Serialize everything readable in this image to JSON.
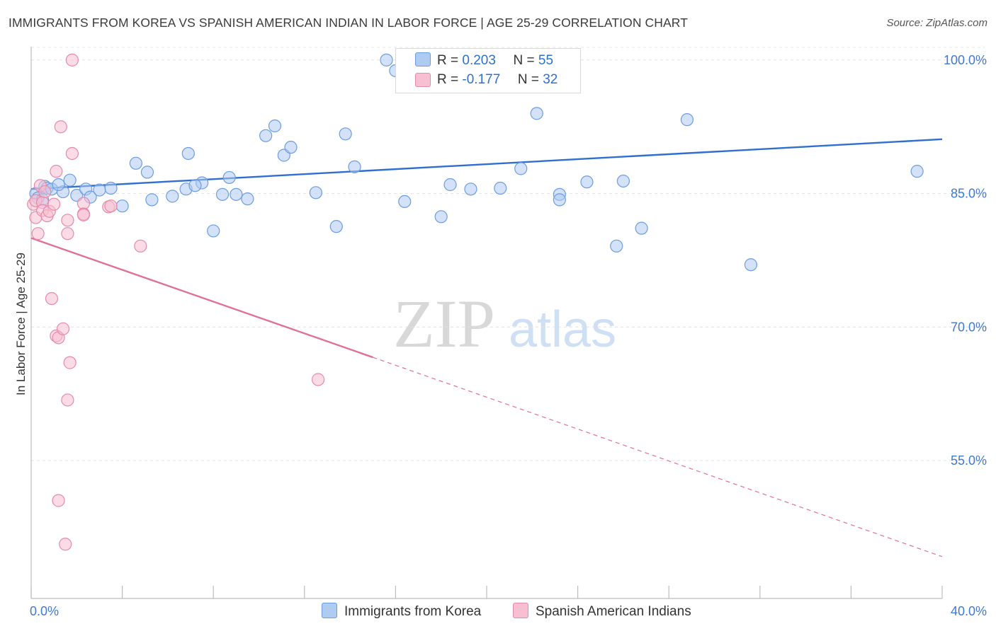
{
  "title": "IMMIGRANTS FROM KOREA VS SPANISH AMERICAN INDIAN IN LABOR FORCE | AGE 25-29 CORRELATION CHART",
  "source": "Source: ZipAtlas.com",
  "watermark": {
    "zip": "ZIP",
    "atlas": "atlas"
  },
  "legend": {
    "rows": [
      {
        "r_label": "R =",
        "r_value": "0.203",
        "n_label": "N =",
        "n_value": "55"
      },
      {
        "r_label": "R =",
        "r_value": "-0.177",
        "n_label": "N =",
        "n_value": "32"
      }
    ]
  },
  "bottom_legend": {
    "series1": "Immigrants from Korea",
    "series2": "Spanish American Indians"
  },
  "colors": {
    "blue_fill": "#aecbf2",
    "blue_stroke": "#6d9de0",
    "blue_line": "#2f6fce",
    "pink_fill": "#f7bfd1",
    "pink_stroke": "#e68aa9",
    "pink_line": "#e0709a",
    "tick_text": "#3f79d0"
  },
  "chart_data": {
    "type": "scatter",
    "title": "IMMIGRANTS FROM KOREA VS SPANISH AMERICAN INDIAN IN LABOR FORCE | AGE 25-29 CORRELATION CHART",
    "xlabel": "",
    "ylabel": "In Labor Force | Age 25-29",
    "xlim": [
      0,
      40
    ],
    "ylim": [
      39.5,
      101.5
    ],
    "x_tick_labels": [
      "0.0%",
      "40.0%"
    ],
    "y_ticks": [
      55,
      70,
      85,
      100
    ],
    "y_tick_labels": [
      "55.0%",
      "70.0%",
      "85.0%",
      "100.0%"
    ],
    "grid": "horizontal dashed",
    "legend_position": "top-center",
    "series": [
      {
        "name": "Immigrants from Korea",
        "color": "#aecbf2",
        "r": 0.203,
        "n": 55,
        "trend": {
          "x": [
            0,
            40
          ],
          "y": [
            85.5,
            91.1
          ],
          "style": "solid"
        },
        "points": [
          [
            0.2,
            85.0
          ],
          [
            0.3,
            84.5
          ],
          [
            0.5,
            84.3
          ],
          [
            0.6,
            85.8
          ],
          [
            0.7,
            85.6
          ],
          [
            0.9,
            85.5
          ],
          [
            1.4,
            85.2
          ],
          [
            1.7,
            86.5
          ],
          [
            2.0,
            84.8
          ],
          [
            2.4,
            85.5
          ],
          [
            2.6,
            84.6
          ],
          [
            3.5,
            85.6
          ],
          [
            4.0,
            83.6
          ],
          [
            4.6,
            88.4
          ],
          [
            5.3,
            84.3
          ],
          [
            6.2,
            84.7
          ],
          [
            6.8,
            85.5
          ],
          [
            6.9,
            89.5
          ],
          [
            7.5,
            86.2
          ],
          [
            8.0,
            80.8
          ],
          [
            8.7,
            86.8
          ],
          [
            9.0,
            84.9
          ],
          [
            9.5,
            84.4
          ],
          [
            10.3,
            91.5
          ],
          [
            10.7,
            92.6
          ],
          [
            11.1,
            89.3
          ],
          [
            12.5,
            85.1
          ],
          [
            13.4,
            81.3
          ],
          [
            13.8,
            91.7
          ],
          [
            16.0,
            98.8
          ],
          [
            16.4,
            84.1
          ],
          [
            18.4,
            86.0
          ],
          [
            19.3,
            85.5
          ],
          [
            20.6,
            85.6
          ],
          [
            21.5,
            87.8
          ],
          [
            22.2,
            94.0
          ],
          [
            23.2,
            84.9
          ],
          [
            23.8,
            99.9
          ],
          [
            24.4,
            86.3
          ],
          [
            25.7,
            79.1
          ],
          [
            26.0,
            86.4
          ],
          [
            28.8,
            93.3
          ],
          [
            1.2,
            86.0
          ],
          [
            3.0,
            85.4
          ],
          [
            5.1,
            87.4
          ],
          [
            7.2,
            85.9
          ],
          [
            8.4,
            84.9
          ],
          [
            11.4,
            90.2
          ],
          [
            14.2,
            88.0
          ],
          [
            15.6,
            100.0
          ],
          [
            18.0,
            82.4
          ],
          [
            23.2,
            84.3
          ],
          [
            26.8,
            81.1
          ],
          [
            31.6,
            77.0
          ],
          [
            38.9,
            87.5
          ]
        ]
      },
      {
        "name": "Spanish American Indians",
        "color": "#f7bfd1",
        "r": -0.177,
        "n": 32,
        "trend": {
          "x": [
            0,
            15
          ],
          "y": [
            80.0,
            66.6
          ],
          "style": "solid"
        },
        "trend_extension": {
          "x": [
            15,
            40
          ],
          "y": [
            66.6,
            44.2
          ],
          "style": "dashed"
        },
        "points": [
          [
            0.1,
            83.8
          ],
          [
            0.2,
            84.2
          ],
          [
            0.2,
            82.3
          ],
          [
            0.3,
            80.5
          ],
          [
            0.4,
            85.9
          ],
          [
            0.5,
            84.0
          ],
          [
            0.5,
            83.1
          ],
          [
            0.6,
            85.2
          ],
          [
            0.7,
            82.5
          ],
          [
            0.8,
            83.0
          ],
          [
            0.9,
            73.2
          ],
          [
            1.0,
            83.8
          ],
          [
            1.1,
            87.5
          ],
          [
            1.1,
            69.0
          ],
          [
            1.2,
            68.8
          ],
          [
            1.4,
            69.8
          ],
          [
            1.2,
            50.5
          ],
          [
            1.3,
            92.5
          ],
          [
            1.5,
            45.6
          ],
          [
            1.6,
            61.8
          ],
          [
            1.6,
            82.0
          ],
          [
            1.6,
            80.5
          ],
          [
            1.7,
            66.0
          ],
          [
            1.8,
            100.0
          ],
          [
            1.8,
            89.5
          ],
          [
            2.3,
            83.9
          ],
          [
            2.3,
            82.7
          ],
          [
            2.3,
            82.6
          ],
          [
            3.4,
            83.5
          ],
          [
            3.5,
            83.6
          ],
          [
            4.8,
            79.1
          ],
          [
            12.6,
            64.1
          ]
        ]
      }
    ]
  }
}
